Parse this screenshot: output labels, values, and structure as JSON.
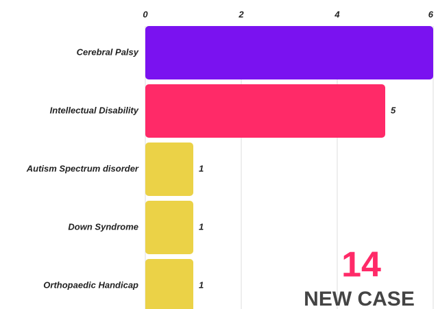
{
  "chart_data": {
    "type": "bar",
    "orientation": "horizontal",
    "categories": [
      "Cerebral Palsy",
      "Intellectual Disability",
      "Autism Spectrum disorder",
      "Down Syndrome",
      "Orthopaedic Handicap"
    ],
    "values": [
      6,
      5,
      1,
      1,
      1
    ],
    "value_labels": [
      null,
      "5",
      "1",
      "1",
      "1"
    ],
    "colors": [
      "#7a12f0",
      "#ff2a68",
      "#ebd247",
      "#ebd247",
      "#ebd247"
    ],
    "xlim": [
      0,
      6
    ],
    "xticks": [
      0,
      2,
      4,
      6
    ],
    "grid": true,
    "annotation_value": 14,
    "annotation_label": "NEW CASE"
  }
}
